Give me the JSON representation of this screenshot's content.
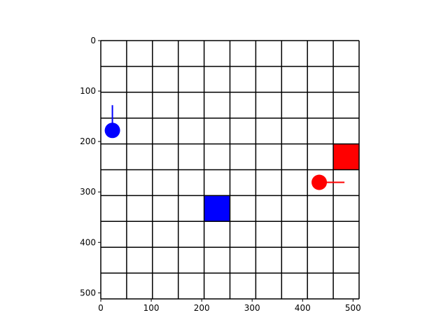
{
  "chart_data": {
    "type": "grid-world",
    "x_ticks": [
      0,
      100,
      200,
      300,
      400,
      500
    ],
    "y_ticks": [
      0,
      100,
      200,
      300,
      400,
      500
    ],
    "xlim": [
      0,
      512
    ],
    "ylim": [
      512,
      0
    ],
    "grid_cells": 10,
    "grid_on": true,
    "colors": {
      "blue_agent": "#0000ff",
      "red_agent": "#ff0000",
      "grid_line": "#000000"
    },
    "agents": [
      {
        "color": "blue",
        "x": 23,
        "y": 178,
        "heading_end": [
          23,
          128
        ]
      },
      {
        "color": "red",
        "x": 433,
        "y": 281,
        "heading_end": [
          483,
          281
        ]
      }
    ],
    "goals": [
      {
        "color": "blue",
        "cell_col": 4,
        "cell_row": 6
      },
      {
        "color": "red",
        "cell_col": 9,
        "cell_row": 4
      }
    ]
  }
}
